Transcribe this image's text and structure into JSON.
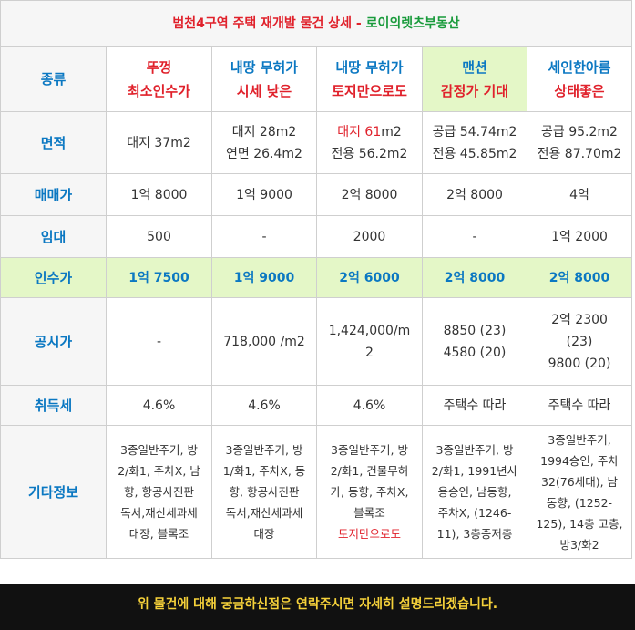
{
  "title": {
    "part1": "범천4구역 주택 재개발 물건 상세",
    "sep": " - ",
    "part2": "로이의렛츠부동산"
  },
  "labels": {
    "type": "종류",
    "area": "면적",
    "sale": "매매가",
    "rent": "임대",
    "takeover": "인수가",
    "official": "공시가",
    "acq_tax": "취득세",
    "etc": "기타정보"
  },
  "properties": [
    {
      "name": "뚜껑",
      "tagline": "최소인수가",
      "area_line1": "대지 37m2",
      "area_line2": "",
      "sale": "1억 8000",
      "rent": "500",
      "takeover": "1억 7500",
      "official_line1": "-",
      "official_line2": "",
      "official_line3": "",
      "acq_tax": "4.6%",
      "etc_lines": [
        "3종일반주거, 방",
        "2/화1, 주차X, 남",
        "향, 항공사진판",
        "독서,재산세과세",
        "대장, 블록조"
      ]
    },
    {
      "name": "내땅 무허가",
      "tagline": "시세 낮은",
      "area_line1": "대지 28m2",
      "area_line2": "연면 26.4m2",
      "sale": "1억 9000",
      "rent": "-",
      "takeover": "1억 9000",
      "official_line1": "718,000 /m2",
      "official_line2": "",
      "official_line3": "",
      "acq_tax": "4.6%",
      "etc_lines": [
        "3종일반주거, 방",
        "1/화1, 주차X, 동",
        "향, 항공사진판",
        "독서,재산세과세",
        "대장"
      ]
    },
    {
      "name": "내땅 무허가",
      "tagline": "토지만으로도",
      "area_red": "대지 61",
      "area_after": "m2",
      "area_line2": "전용 56.2m2",
      "sale": "2억 8000",
      "rent": "2000",
      "takeover": "2억 6000",
      "official_line1": "1,424,000/m",
      "official_line2": "2",
      "official_line3": "",
      "acq_tax": "4.6%",
      "etc_lines": [
        "3종일반주거, 방",
        "2/화1, 건물무허",
        "가, 동향, 주차X,",
        "블록조"
      ],
      "etc_red": "토지만으로도"
    },
    {
      "name": "맨션",
      "tagline": "감정가 기대",
      "area_line1": "공급 54.74m2",
      "area_line2": "전용 45.85m2",
      "sale": "2억 8000",
      "rent": "-",
      "takeover": "2억 8000",
      "official_line1": "8850 (23)",
      "official_line2": "4580 (20)",
      "official_line3": "",
      "acq_tax": "주택수 따라",
      "etc_lines": [
        "3종일반주거, 방",
        "2/화1, 1991년사",
        "용승인, 남동향,",
        "주차X, (1246-",
        "11), 3층중저층"
      ]
    },
    {
      "name": "세인한아름",
      "tagline": "상태좋은",
      "area_line1": "공급 95.2m2",
      "area_line2": "전용 87.70m2",
      "sale": "4억",
      "rent": "1억 2000",
      "takeover": "2억 8000",
      "official_line1": "2억 2300",
      "official_line2": "(23)",
      "official_line3": "9800 (20)",
      "acq_tax": "주택수 따라",
      "etc_lines": [
        "3종일반주거,",
        "1994승인, 주차",
        "32(76세대), 남",
        "동향, (1252-",
        "125), 14층 고층,",
        "방3/화2"
      ]
    }
  ],
  "footer": "위 물건에 대해 궁금하신점은 연락주시면 자세히 설명드리겠습니다.",
  "colors": {
    "label_blue": "#0b78c2",
    "accent_red": "#e0212b",
    "brand_green": "#1a9b3c",
    "highlight_green": "#e4f7c7",
    "footer_bg": "#111111",
    "footer_text": "#f5d13a"
  }
}
